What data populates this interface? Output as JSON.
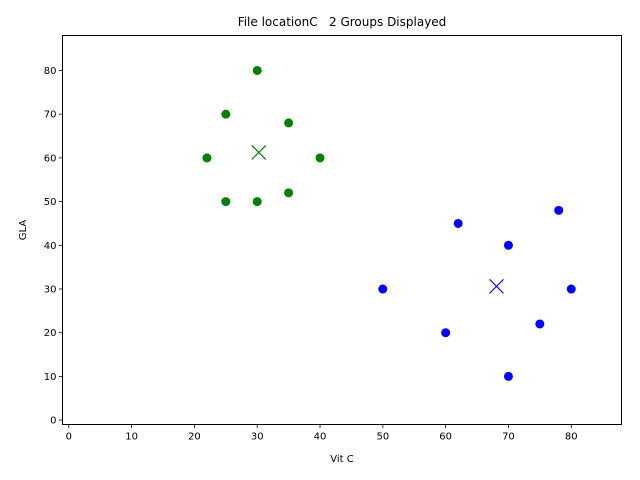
{
  "chart_data": {
    "type": "scatter",
    "title": "File locationC   2 Groups Displayed",
    "xlabel": "Vit C",
    "ylabel": "GLA",
    "xlim": [
      -1,
      88
    ],
    "ylim": [
      -1,
      88
    ],
    "xticks": [
      0,
      10,
      20,
      30,
      40,
      50,
      60,
      70,
      80
    ],
    "yticks": [
      0,
      10,
      20,
      30,
      40,
      50,
      60,
      70,
      80
    ],
    "grid": false,
    "legend": "none",
    "series": [
      {
        "color": "#008000",
        "marker": "circle",
        "points": [
          {
            "x": 30,
            "y": 80
          },
          {
            "x": 25,
            "y": 70
          },
          {
            "x": 35,
            "y": 68
          },
          {
            "x": 22,
            "y": 60
          },
          {
            "x": 40,
            "y": 60
          },
          {
            "x": 35,
            "y": 52
          },
          {
            "x": 25,
            "y": 50
          },
          {
            "x": 30,
            "y": 50
          }
        ],
        "centroid": {
          "x": 30.25,
          "y": 61.25,
          "marker": "x"
        }
      },
      {
        "color": "#0000ff",
        "marker": "circle",
        "points": [
          {
            "x": 78,
            "y": 48
          },
          {
            "x": 62,
            "y": 45
          },
          {
            "x": 70,
            "y": 40
          },
          {
            "x": 50,
            "y": 30
          },
          {
            "x": 80,
            "y": 30
          },
          {
            "x": 75,
            "y": 22
          },
          {
            "x": 60,
            "y": 20
          },
          {
            "x": 70,
            "y": 10
          }
        ],
        "centroid": {
          "x": 68.1,
          "y": 30.6,
          "marker": "x"
        }
      }
    ]
  }
}
